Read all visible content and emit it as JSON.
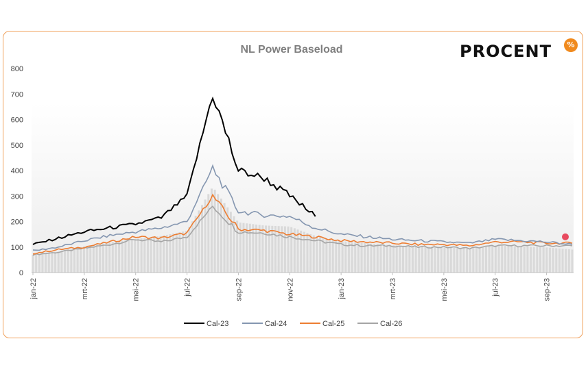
{
  "logo": {
    "text": "PROCENT",
    "badge": "%"
  },
  "chart_data": {
    "type": "line",
    "title": "NL Power Baseload",
    "xlabel": "",
    "ylabel": "",
    "ylim": [
      0,
      800
    ],
    "yticks": [
      0,
      100,
      200,
      300,
      400,
      500,
      600,
      700,
      800
    ],
    "x_tick_labels": [
      "jan-22",
      "mrt-22",
      "mei-22",
      "jul-22",
      "sep-22",
      "nov-22",
      "jan-23",
      "mrt-23",
      "mei-23",
      "jul-23",
      "sep-23"
    ],
    "x": [
      "jan-22",
      "feb-22",
      "mrt-22",
      "apr-22",
      "mei-22",
      "jun-22",
      "jul-22",
      "aug-22",
      "sep-22",
      "okt-22",
      "nov-22",
      "dec-22",
      "jan-23",
      "feb-23",
      "mrt-23",
      "apr-23",
      "mei-23",
      "jun-23",
      "jul-23",
      "aug-23",
      "sep-23",
      "okt-23"
    ],
    "grid": false,
    "legend_position": "bottom",
    "series": [
      {
        "name": "Cal-23",
        "color": "#000000",
        "values": [
          110,
          135,
          160,
          175,
          190,
          215,
          300,
          700,
          400,
          370,
          300,
          220,
          null,
          null,
          null,
          null,
          null,
          null,
          null,
          null,
          null,
          null
        ]
      },
      {
        "name": "Cal-24",
        "color": "#8496b0",
        "values": [
          85,
          100,
          125,
          145,
          160,
          175,
          200,
          410,
          240,
          225,
          220,
          175,
          150,
          140,
          130,
          125,
          120,
          115,
          130,
          125,
          120,
          110
        ]
      },
      {
        "name": "Cal-25",
        "color": "#ed7d31",
        "values": [
          75,
          90,
          100,
          120,
          140,
          135,
          155,
          300,
          170,
          165,
          150,
          140,
          125,
          120,
          115,
          110,
          110,
          105,
          120,
          120,
          115,
          115
        ]
      },
      {
        "name": "Cal-26",
        "color": "#a5a5a5",
        "values": [
          70,
          80,
          95,
          110,
          130,
          120,
          140,
          260,
          160,
          155,
          140,
          125,
          110,
          105,
          105,
          100,
          100,
          95,
          105,
          105,
          105,
          105
        ]
      }
    ],
    "bar_series": {
      "color": "#d9d9d9",
      "note_hidden": true
    },
    "marker": {
      "x": "okt-23",
      "y": 140,
      "color": "#e84a5f"
    }
  }
}
